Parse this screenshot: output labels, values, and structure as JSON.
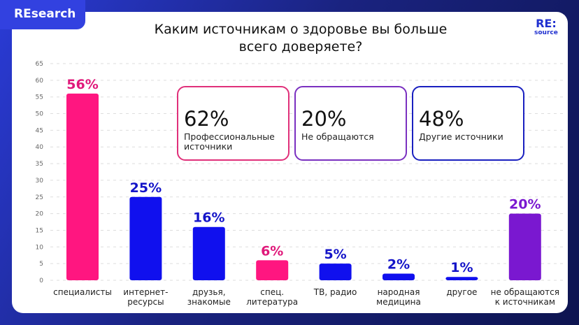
{
  "header": {
    "tab": "REsearch",
    "logo_top": "RE:",
    "logo_bottom": "source"
  },
  "chart_data": {
    "type": "bar",
    "title": "Каким источникам о здоровье вы больше всего доверяете?",
    "categories": [
      "специалисты",
      "интернет-\nресурсы",
      "друзья,\nзнакомые",
      "спец.\nлитература",
      "ТВ, радио",
      "народная\nмедицина",
      "другое",
      "не обращаются\nк источникам"
    ],
    "values": [
      56,
      25,
      16,
      6,
      5,
      2,
      1,
      20
    ],
    "data_labels": [
      "56%",
      "25%",
      "16%",
      "6%",
      "5%",
      "2%",
      "1%",
      "20%"
    ],
    "colors": [
      "#ff1680",
      "#1010ee",
      "#1010ee",
      "#ff1680",
      "#1010ee",
      "#1010ee",
      "#1010ee",
      "#7a18d0"
    ],
    "label_colors": [
      "#e0187a",
      "#1414c8",
      "#1414c8",
      "#e0187a",
      "#1414c8",
      "#1414c8",
      "#1414c8",
      "#7a18d0"
    ],
    "ylim": [
      0,
      65
    ],
    "yticks": [
      0,
      5,
      10,
      15,
      20,
      25,
      30,
      35,
      40,
      45,
      50,
      55,
      60,
      65
    ],
    "grid": true
  },
  "callouts": [
    {
      "value": "62%",
      "label": "Профессиональные источники",
      "color": "#e0307a"
    },
    {
      "value": "20%",
      "label": "Не обращаются",
      "color": "#7a30c0"
    },
    {
      "value": "48%",
      "label": "Другие источники",
      "color": "#1a20c0"
    }
  ]
}
